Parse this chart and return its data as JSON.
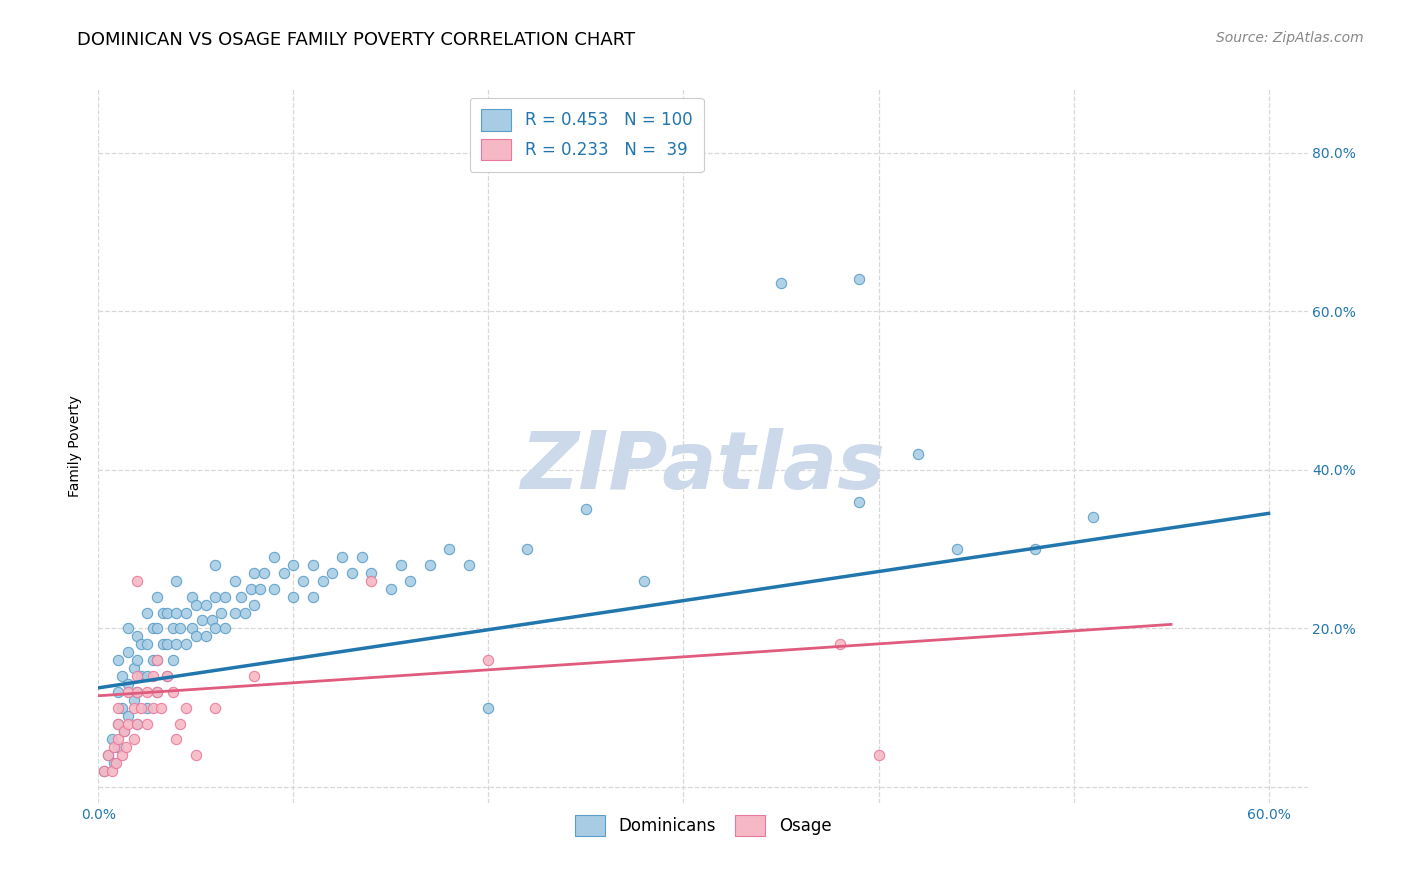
{
  "title": "DOMINICAN VS OSAGE FAMILY POVERTY CORRELATION CHART",
  "source": "Source: ZipAtlas.com",
  "ylabel": "Family Poverty",
  "xlim": [
    0.0,
    0.62
  ],
  "ylim": [
    -0.02,
    0.88
  ],
  "xticks": [
    0.0,
    0.1,
    0.2,
    0.3,
    0.4,
    0.5,
    0.6
  ],
  "xtick_labels": [
    "0.0%",
    "",
    "",
    "",
    "",
    "",
    "60.0%"
  ],
  "yticks_right": [
    0.0,
    0.2,
    0.4,
    0.6,
    0.8
  ],
  "ytick_labels_right": [
    "",
    "20.0%",
    "40.0%",
    "60.0%",
    "80.0%"
  ],
  "blue_R": 0.453,
  "blue_N": 100,
  "pink_R": 0.233,
  "pink_N": 39,
  "blue_color": "#a8cce4",
  "pink_color": "#f5b8c4",
  "blue_edge_color": "#5b9ec9",
  "pink_edge_color": "#e8799a",
  "blue_line_color": "#2176ae",
  "pink_line_color": "#e05c7e",
  "blue_trend_x": [
    0.0,
    0.6
  ],
  "blue_trend_y": [
    0.125,
    0.345
  ],
  "pink_trend_x": [
    0.0,
    0.55
  ],
  "pink_trend_y": [
    0.115,
    0.205
  ],
  "blue_scatter": [
    [
      0.003,
      0.02
    ],
    [
      0.005,
      0.04
    ],
    [
      0.007,
      0.06
    ],
    [
      0.008,
      0.03
    ],
    [
      0.01,
      0.05
    ],
    [
      0.01,
      0.08
    ],
    [
      0.01,
      0.12
    ],
    [
      0.01,
      0.16
    ],
    [
      0.012,
      0.1
    ],
    [
      0.012,
      0.14
    ],
    [
      0.013,
      0.07
    ],
    [
      0.015,
      0.09
    ],
    [
      0.015,
      0.13
    ],
    [
      0.015,
      0.17
    ],
    [
      0.015,
      0.2
    ],
    [
      0.018,
      0.11
    ],
    [
      0.018,
      0.15
    ],
    [
      0.02,
      0.08
    ],
    [
      0.02,
      0.12
    ],
    [
      0.02,
      0.16
    ],
    [
      0.02,
      0.19
    ],
    [
      0.022,
      0.14
    ],
    [
      0.022,
      0.18
    ],
    [
      0.025,
      0.1
    ],
    [
      0.025,
      0.14
    ],
    [
      0.025,
      0.18
    ],
    [
      0.025,
      0.22
    ],
    [
      0.028,
      0.16
    ],
    [
      0.028,
      0.2
    ],
    [
      0.03,
      0.12
    ],
    [
      0.03,
      0.16
    ],
    [
      0.03,
      0.2
    ],
    [
      0.03,
      0.24
    ],
    [
      0.033,
      0.18
    ],
    [
      0.033,
      0.22
    ],
    [
      0.035,
      0.14
    ],
    [
      0.035,
      0.18
    ],
    [
      0.035,
      0.22
    ],
    [
      0.038,
      0.16
    ],
    [
      0.038,
      0.2
    ],
    [
      0.04,
      0.18
    ],
    [
      0.04,
      0.22
    ],
    [
      0.04,
      0.26
    ],
    [
      0.042,
      0.2
    ],
    [
      0.045,
      0.18
    ],
    [
      0.045,
      0.22
    ],
    [
      0.048,
      0.2
    ],
    [
      0.048,
      0.24
    ],
    [
      0.05,
      0.19
    ],
    [
      0.05,
      0.23
    ],
    [
      0.053,
      0.21
    ],
    [
      0.055,
      0.19
    ],
    [
      0.055,
      0.23
    ],
    [
      0.058,
      0.21
    ],
    [
      0.06,
      0.2
    ],
    [
      0.06,
      0.24
    ],
    [
      0.06,
      0.28
    ],
    [
      0.063,
      0.22
    ],
    [
      0.065,
      0.2
    ],
    [
      0.065,
      0.24
    ],
    [
      0.07,
      0.22
    ],
    [
      0.07,
      0.26
    ],
    [
      0.073,
      0.24
    ],
    [
      0.075,
      0.22
    ],
    [
      0.078,
      0.25
    ],
    [
      0.08,
      0.23
    ],
    [
      0.08,
      0.27
    ],
    [
      0.083,
      0.25
    ],
    [
      0.085,
      0.27
    ],
    [
      0.09,
      0.25
    ],
    [
      0.09,
      0.29
    ],
    [
      0.095,
      0.27
    ],
    [
      0.1,
      0.24
    ],
    [
      0.1,
      0.28
    ],
    [
      0.105,
      0.26
    ],
    [
      0.11,
      0.24
    ],
    [
      0.11,
      0.28
    ],
    [
      0.115,
      0.26
    ],
    [
      0.12,
      0.27
    ],
    [
      0.125,
      0.29
    ],
    [
      0.13,
      0.27
    ],
    [
      0.135,
      0.29
    ],
    [
      0.14,
      0.27
    ],
    [
      0.15,
      0.25
    ],
    [
      0.155,
      0.28
    ],
    [
      0.16,
      0.26
    ],
    [
      0.17,
      0.28
    ],
    [
      0.18,
      0.3
    ],
    [
      0.19,
      0.28
    ],
    [
      0.2,
      0.1
    ],
    [
      0.22,
      0.3
    ],
    [
      0.25,
      0.35
    ],
    [
      0.28,
      0.26
    ],
    [
      0.35,
      0.635
    ],
    [
      0.39,
      0.64
    ],
    [
      0.39,
      0.36
    ],
    [
      0.42,
      0.42
    ],
    [
      0.44,
      0.3
    ],
    [
      0.48,
      0.3
    ],
    [
      0.51,
      0.34
    ]
  ],
  "pink_scatter": [
    [
      0.003,
      0.02
    ],
    [
      0.005,
      0.04
    ],
    [
      0.007,
      0.02
    ],
    [
      0.008,
      0.05
    ],
    [
      0.009,
      0.03
    ],
    [
      0.01,
      0.06
    ],
    [
      0.01,
      0.08
    ],
    [
      0.01,
      0.1
    ],
    [
      0.012,
      0.04
    ],
    [
      0.013,
      0.07
    ],
    [
      0.014,
      0.05
    ],
    [
      0.015,
      0.08
    ],
    [
      0.015,
      0.12
    ],
    [
      0.018,
      0.06
    ],
    [
      0.018,
      0.1
    ],
    [
      0.02,
      0.08
    ],
    [
      0.02,
      0.12
    ],
    [
      0.02,
      0.14
    ],
    [
      0.02,
      0.26
    ],
    [
      0.022,
      0.1
    ],
    [
      0.025,
      0.08
    ],
    [
      0.025,
      0.12
    ],
    [
      0.028,
      0.1
    ],
    [
      0.028,
      0.14
    ],
    [
      0.03,
      0.12
    ],
    [
      0.03,
      0.16
    ],
    [
      0.032,
      0.1
    ],
    [
      0.035,
      0.14
    ],
    [
      0.038,
      0.12
    ],
    [
      0.04,
      0.06
    ],
    [
      0.042,
      0.08
    ],
    [
      0.045,
      0.1
    ],
    [
      0.05,
      0.04
    ],
    [
      0.06,
      0.1
    ],
    [
      0.08,
      0.14
    ],
    [
      0.14,
      0.26
    ],
    [
      0.2,
      0.16
    ],
    [
      0.38,
      0.18
    ],
    [
      0.4,
      0.04
    ]
  ],
  "watermark": "ZIPatlas",
  "watermark_color": "#ccd9ea",
  "background_color": "#ffffff",
  "grid_color": "#d8d8d8",
  "title_fontsize": 13,
  "axis_label_fontsize": 10,
  "tick_fontsize": 10,
  "legend_fontsize": 12,
  "source_fontsize": 10
}
